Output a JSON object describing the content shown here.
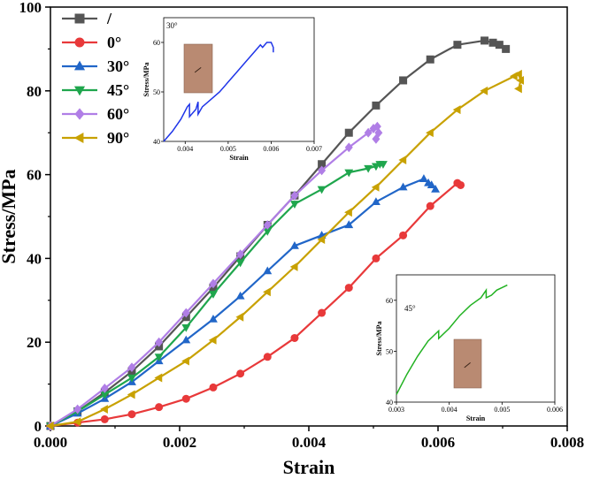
{
  "chart_data": {
    "type": "line",
    "title": "",
    "xlabel": "Strain",
    "ylabel": "Stress/MPa",
    "xlim": [
      0,
      0.008
    ],
    "ylim": [
      0,
      100
    ],
    "xticks": [
      "0.000",
      "0.002",
      "0.004",
      "0.006",
      "0.008"
    ],
    "yticks": [
      "0",
      "20",
      "40",
      "60",
      "80",
      "100"
    ],
    "grid": false,
    "legend_position": "top-left",
    "series": [
      {
        "name": "/",
        "color": "#555555",
        "marker": "square",
        "x": [
          0,
          0.00042,
          0.00084,
          0.00126,
          0.00168,
          0.0021,
          0.00252,
          0.00294,
          0.00336,
          0.00378,
          0.0042,
          0.00462,
          0.00504,
          0.00546,
          0.00588,
          0.0063,
          0.00672,
          0.00685,
          0.00695,
          0.00705
        ],
        "y": [
          0,
          3.5,
          8,
          13,
          19,
          26,
          33,
          40.5,
          48,
          55,
          62.5,
          70,
          76.5,
          82.5,
          87.5,
          91,
          92,
          91.5,
          91,
          90
        ]
      },
      {
        "name": "0°",
        "color": "#e8393a",
        "marker": "circle",
        "x": [
          0,
          0.00042,
          0.00084,
          0.00126,
          0.00168,
          0.0021,
          0.00252,
          0.00294,
          0.00336,
          0.00378,
          0.0042,
          0.00462,
          0.00504,
          0.00546,
          0.00588,
          0.0063,
          0.00635
        ],
        "y": [
          0,
          0.8,
          1.6,
          2.8,
          4.5,
          6.5,
          9.2,
          12.5,
          16.5,
          21,
          27,
          33,
          40,
          45.5,
          52.5,
          58,
          57.5
        ]
      },
      {
        "name": "30°",
        "color": "#2166c8",
        "marker": "triangle-up",
        "x": [
          0,
          0.00042,
          0.00084,
          0.00126,
          0.00168,
          0.0021,
          0.00252,
          0.00294,
          0.00336,
          0.00378,
          0.0042,
          0.00462,
          0.00504,
          0.00546,
          0.00578,
          0.00585,
          0.0059,
          0.00596
        ],
        "y": [
          0,
          3,
          6.5,
          10.5,
          15.5,
          20.5,
          25.5,
          31,
          37,
          43,
          45.5,
          48,
          53.5,
          57,
          59,
          58,
          57.5,
          56.5
        ]
      },
      {
        "name": "45°",
        "color": "#1fa64d",
        "marker": "triangle-down",
        "x": [
          0,
          0.00042,
          0.00084,
          0.00126,
          0.00168,
          0.0021,
          0.00252,
          0.00294,
          0.00336,
          0.00378,
          0.0042,
          0.00462,
          0.00492,
          0.00504,
          0.0051,
          0.00515
        ],
        "y": [
          0,
          3.5,
          7.5,
          11.5,
          16.5,
          23.5,
          31.5,
          39,
          46.5,
          53,
          56.5,
          60.5,
          61.5,
          62,
          62.5,
          62.5
        ]
      },
      {
        "name": "60°",
        "color": "#b07ee6",
        "marker": "diamond",
        "x": [
          0,
          0.00042,
          0.00084,
          0.00126,
          0.00168,
          0.0021,
          0.00252,
          0.00294,
          0.00336,
          0.00378,
          0.0042,
          0.00462,
          0.00492,
          0.005,
          0.00506,
          0.00508,
          0.00504
        ],
        "y": [
          0,
          4,
          9,
          14,
          20,
          27,
          34,
          41,
          48,
          55,
          61,
          66.5,
          70,
          71,
          71.5,
          70,
          68.5
        ]
      },
      {
        "name": "90°",
        "color": "#c8a100",
        "marker": "triangle-left",
        "x": [
          0,
          0.00042,
          0.00084,
          0.00126,
          0.00168,
          0.0021,
          0.00252,
          0.00294,
          0.00336,
          0.00378,
          0.0042,
          0.00462,
          0.00504,
          0.00546,
          0.00588,
          0.0063,
          0.00672,
          0.00718,
          0.00725,
          0.00728,
          0.00725
        ],
        "y": [
          0,
          1,
          4,
          7.5,
          11.5,
          15.5,
          20.5,
          26,
          32,
          38,
          44.5,
          51,
          57,
          63.5,
          70,
          75.5,
          80,
          83.5,
          84,
          82.5,
          80.5
        ]
      }
    ],
    "insets": [
      {
        "name": "30°",
        "label": "30°",
        "color": "#1f35e8",
        "xlabel": "Strain",
        "ylabel": "Stress/MPa",
        "xlim": [
          0.0035,
          0.007
        ],
        "ylim": [
          40,
          65
        ],
        "xticks": [
          "0.004",
          "0.005",
          "0.006",
          "0.007"
        ],
        "yticks": [
          "40",
          "50",
          "60"
        ],
        "x": [
          0.0035,
          0.0037,
          0.0039,
          0.00405,
          0.0041,
          0.0041,
          0.00425,
          0.0043,
          0.0043,
          0.0044,
          0.0046,
          0.0048,
          0.005,
          0.0052,
          0.0054,
          0.0056,
          0.0057,
          0.00575,
          0.0058,
          0.0059,
          0.006,
          0.00605,
          0.00605
        ],
        "y": [
          40,
          42,
          44.5,
          47,
          47.5,
          45,
          46.5,
          48,
          45.5,
          47,
          48.5,
          50,
          52,
          54,
          56,
          58,
          59,
          59.5,
          59,
          60,
          60,
          59,
          58
        ]
      },
      {
        "name": "45°",
        "label": "45°",
        "color": "#22b222",
        "xlabel": "Strain",
        "ylabel": "Stress/MPa",
        "xlim": [
          0.003,
          0.006
        ],
        "ylim": [
          40,
          65
        ],
        "xticks": [
          "0.003",
          "0.004",
          "0.005",
          "0.006"
        ],
        "yticks": [
          "40",
          "50",
          "60"
        ],
        "x": [
          0.003,
          0.0032,
          0.0034,
          0.0036,
          0.0037,
          0.0038,
          0.0038,
          0.004,
          0.0042,
          0.0044,
          0.0046,
          0.0047,
          0.0047,
          0.0048,
          0.0049,
          0.005,
          0.0051
        ],
        "y": [
          41.5,
          45.5,
          49,
          52,
          53,
          54,
          52.5,
          54.5,
          57,
          59,
          60.5,
          62,
          60.5,
          61,
          62,
          62.5,
          63
        ]
      }
    ]
  }
}
